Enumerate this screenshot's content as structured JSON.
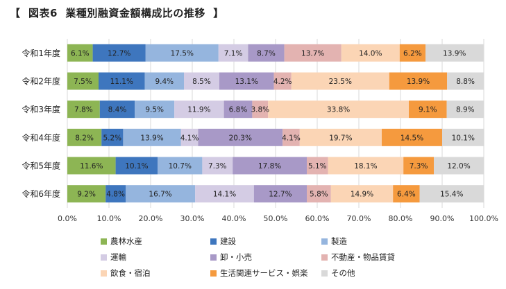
{
  "title": "【  図表6  業種別融資金額構成比の推移  】",
  "chart_data": {
    "type": "bar",
    "orientation": "horizontal",
    "stacked": true,
    "percent": true,
    "categories": [
      "令和1年度",
      "令和2年度",
      "令和3年度",
      "令和4年度",
      "令和5年度",
      "令和6年度"
    ],
    "xlim": [
      0,
      100
    ],
    "x_ticks": [
      "0.0%",
      "10.0%",
      "20.0%",
      "30.0%",
      "40.0%",
      "50.0%",
      "60.0%",
      "70.0%",
      "80.0%",
      "90.0%",
      "100.0%"
    ],
    "grid": "vertical",
    "legend_position": "bottom",
    "series": [
      {
        "name": "農林水産",
        "color": "#8DB554",
        "values": [
          6.1,
          7.5,
          7.8,
          8.2,
          11.6,
          9.2
        ]
      },
      {
        "name": "建設",
        "color": "#3E76BE",
        "values": [
          12.7,
          11.1,
          8.4,
          5.2,
          10.1,
          4.8
        ]
      },
      {
        "name": "製造",
        "color": "#95B5DE",
        "values": [
          17.5,
          9.4,
          9.5,
          13.9,
          10.7,
          16.7
        ]
      },
      {
        "name": "運輸",
        "color": "#D4CCE4",
        "values": [
          7.1,
          8.5,
          11.9,
          4.1,
          7.3,
          14.1
        ]
      },
      {
        "name": "卸・小売",
        "color": "#A899C7",
        "values": [
          8.7,
          13.1,
          6.8,
          20.3,
          17.8,
          12.7
        ]
      },
      {
        "name": "不動産・物品賃貸",
        "color": "#E3B3B1",
        "values": [
          13.7,
          4.2,
          3.8,
          4.1,
          5.1,
          5.8
        ]
      },
      {
        "name": "飲食・宿泊",
        "color": "#FBD5B5",
        "values": [
          14.0,
          23.5,
          33.8,
          19.7,
          18.1,
          14.9
        ]
      },
      {
        "name": "生活関連サービス・娯楽",
        "color": "#F59A3E",
        "values": [
          6.2,
          13.9,
          9.1,
          14.5,
          7.3,
          6.4
        ]
      },
      {
        "name": "その他",
        "color": "#D9D9D9",
        "values": [
          13.9,
          8.8,
          8.9,
          10.1,
          12.0,
          15.4
        ]
      }
    ]
  }
}
